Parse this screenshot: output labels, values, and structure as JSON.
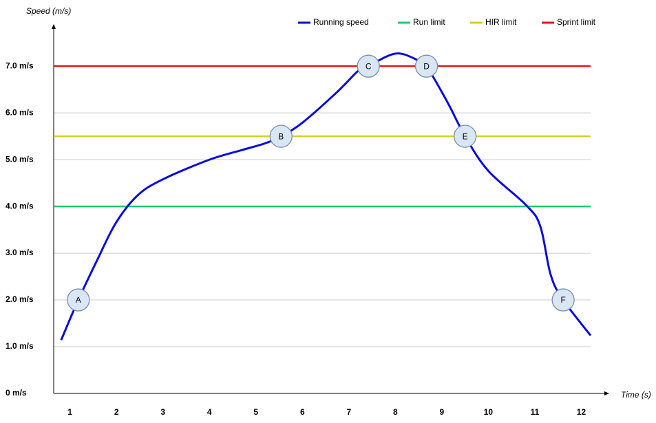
{
  "chart_data": {
    "type": "line",
    "y_label": "Speed (m/s)",
    "x_label": "Time (s)",
    "xlim": [
      0.65,
      12.6
    ],
    "ylim": [
      0,
      7.9
    ],
    "xticks": [
      1,
      2,
      3,
      4,
      5,
      6,
      7,
      8,
      9,
      10,
      11,
      12
    ],
    "yticks": [
      {
        "value": 0,
        "label": "0 m/s"
      },
      {
        "value": 1,
        "label": "1.0 m/s"
      },
      {
        "value": 2,
        "label": "2.0 m/s"
      },
      {
        "value": 3,
        "label": "3.0 m/s"
      },
      {
        "value": 4,
        "label": "4.0 m/s"
      },
      {
        "value": 5,
        "label": "5.0 m/s"
      },
      {
        "value": 6,
        "label": "6.0 m/s"
      },
      {
        "value": 7,
        "label": "7.0 m/s"
      }
    ],
    "grid": true,
    "legend": "top-right",
    "series": [
      {
        "name": "Running speed",
        "color": "#0a0adc",
        "x": [
          0.81,
          1.18,
          1.58,
          1.99,
          2.46,
          3.0,
          4.0,
          4.68,
          5.2,
          5.54,
          6.0,
          6.75,
          7.2,
          7.42,
          8.01,
          8.5,
          8.67,
          9.12,
          9.5,
          10.0,
          10.82,
          11.12,
          11.34,
          11.61,
          12.2
        ],
        "values": [
          1.14,
          2.0,
          2.84,
          3.65,
          4.24,
          4.58,
          5.0,
          5.2,
          5.35,
          5.5,
          5.79,
          6.45,
          6.9,
          7.0,
          7.27,
          7.12,
          7.0,
          6.23,
          5.5,
          4.76,
          4.02,
          3.57,
          2.54,
          2.0,
          1.24
        ]
      }
    ],
    "limits": [
      {
        "name": "Run limit",
        "color": "#1ec86e",
        "value": 4
      },
      {
        "name": "HIR limit",
        "color": "#d2d21e",
        "value": 5.5
      },
      {
        "name": "Sprint limit",
        "color": "#e61414",
        "value": 7
      }
    ],
    "markers": [
      {
        "label": "A",
        "x": 1.18,
        "y": 2
      },
      {
        "label": "B",
        "x": 5.54,
        "y": 5.5
      },
      {
        "label": "C",
        "x": 7.42,
        "y": 7
      },
      {
        "label": "D",
        "x": 8.67,
        "y": 7
      },
      {
        "label": "E",
        "x": 9.5,
        "y": 5.5
      },
      {
        "label": "F",
        "x": 11.61,
        "y": 2
      }
    ]
  }
}
